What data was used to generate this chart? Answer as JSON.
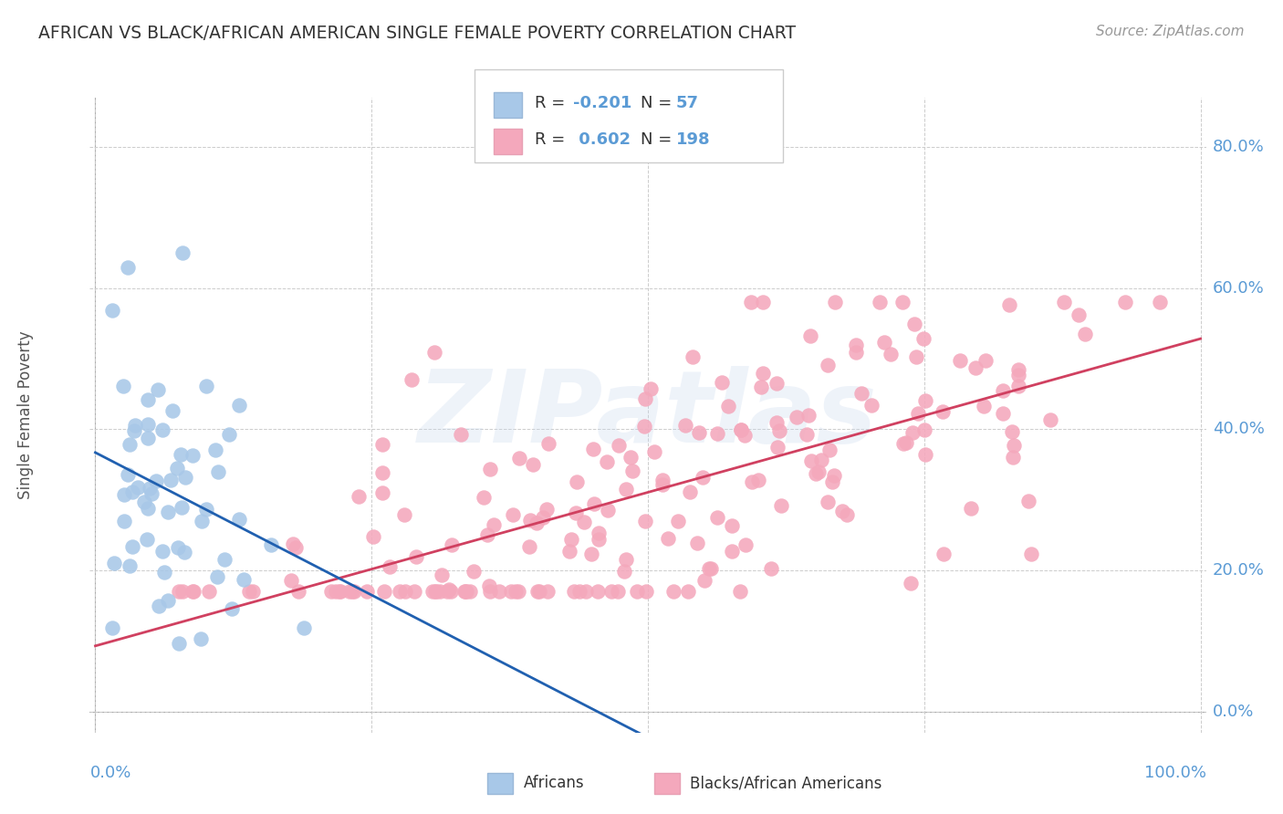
{
  "title": "AFRICAN VS BLACK/AFRICAN AMERICAN SINGLE FEMALE POVERTY CORRELATION CHART",
  "source": "Source: ZipAtlas.com",
  "ylabel": "Single Female Poverty",
  "watermark": "ZIPatlas",
  "africans_color": "#a8c8e8",
  "blacks_color": "#f4a8bc",
  "africans_line_color": "#2060b0",
  "blacks_line_color": "#d04060",
  "background_color": "#ffffff",
  "grid_color": "#cccccc",
  "right_tick_color": "#5b9bd5",
  "title_color": "#333333",
  "source_color": "#999999",
  "legend_value_color": "#5b9bd5",
  "seed": 42,
  "n_africans": 57,
  "n_blacks": 198,
  "r_africans": -0.201,
  "r_blacks": 0.602
}
